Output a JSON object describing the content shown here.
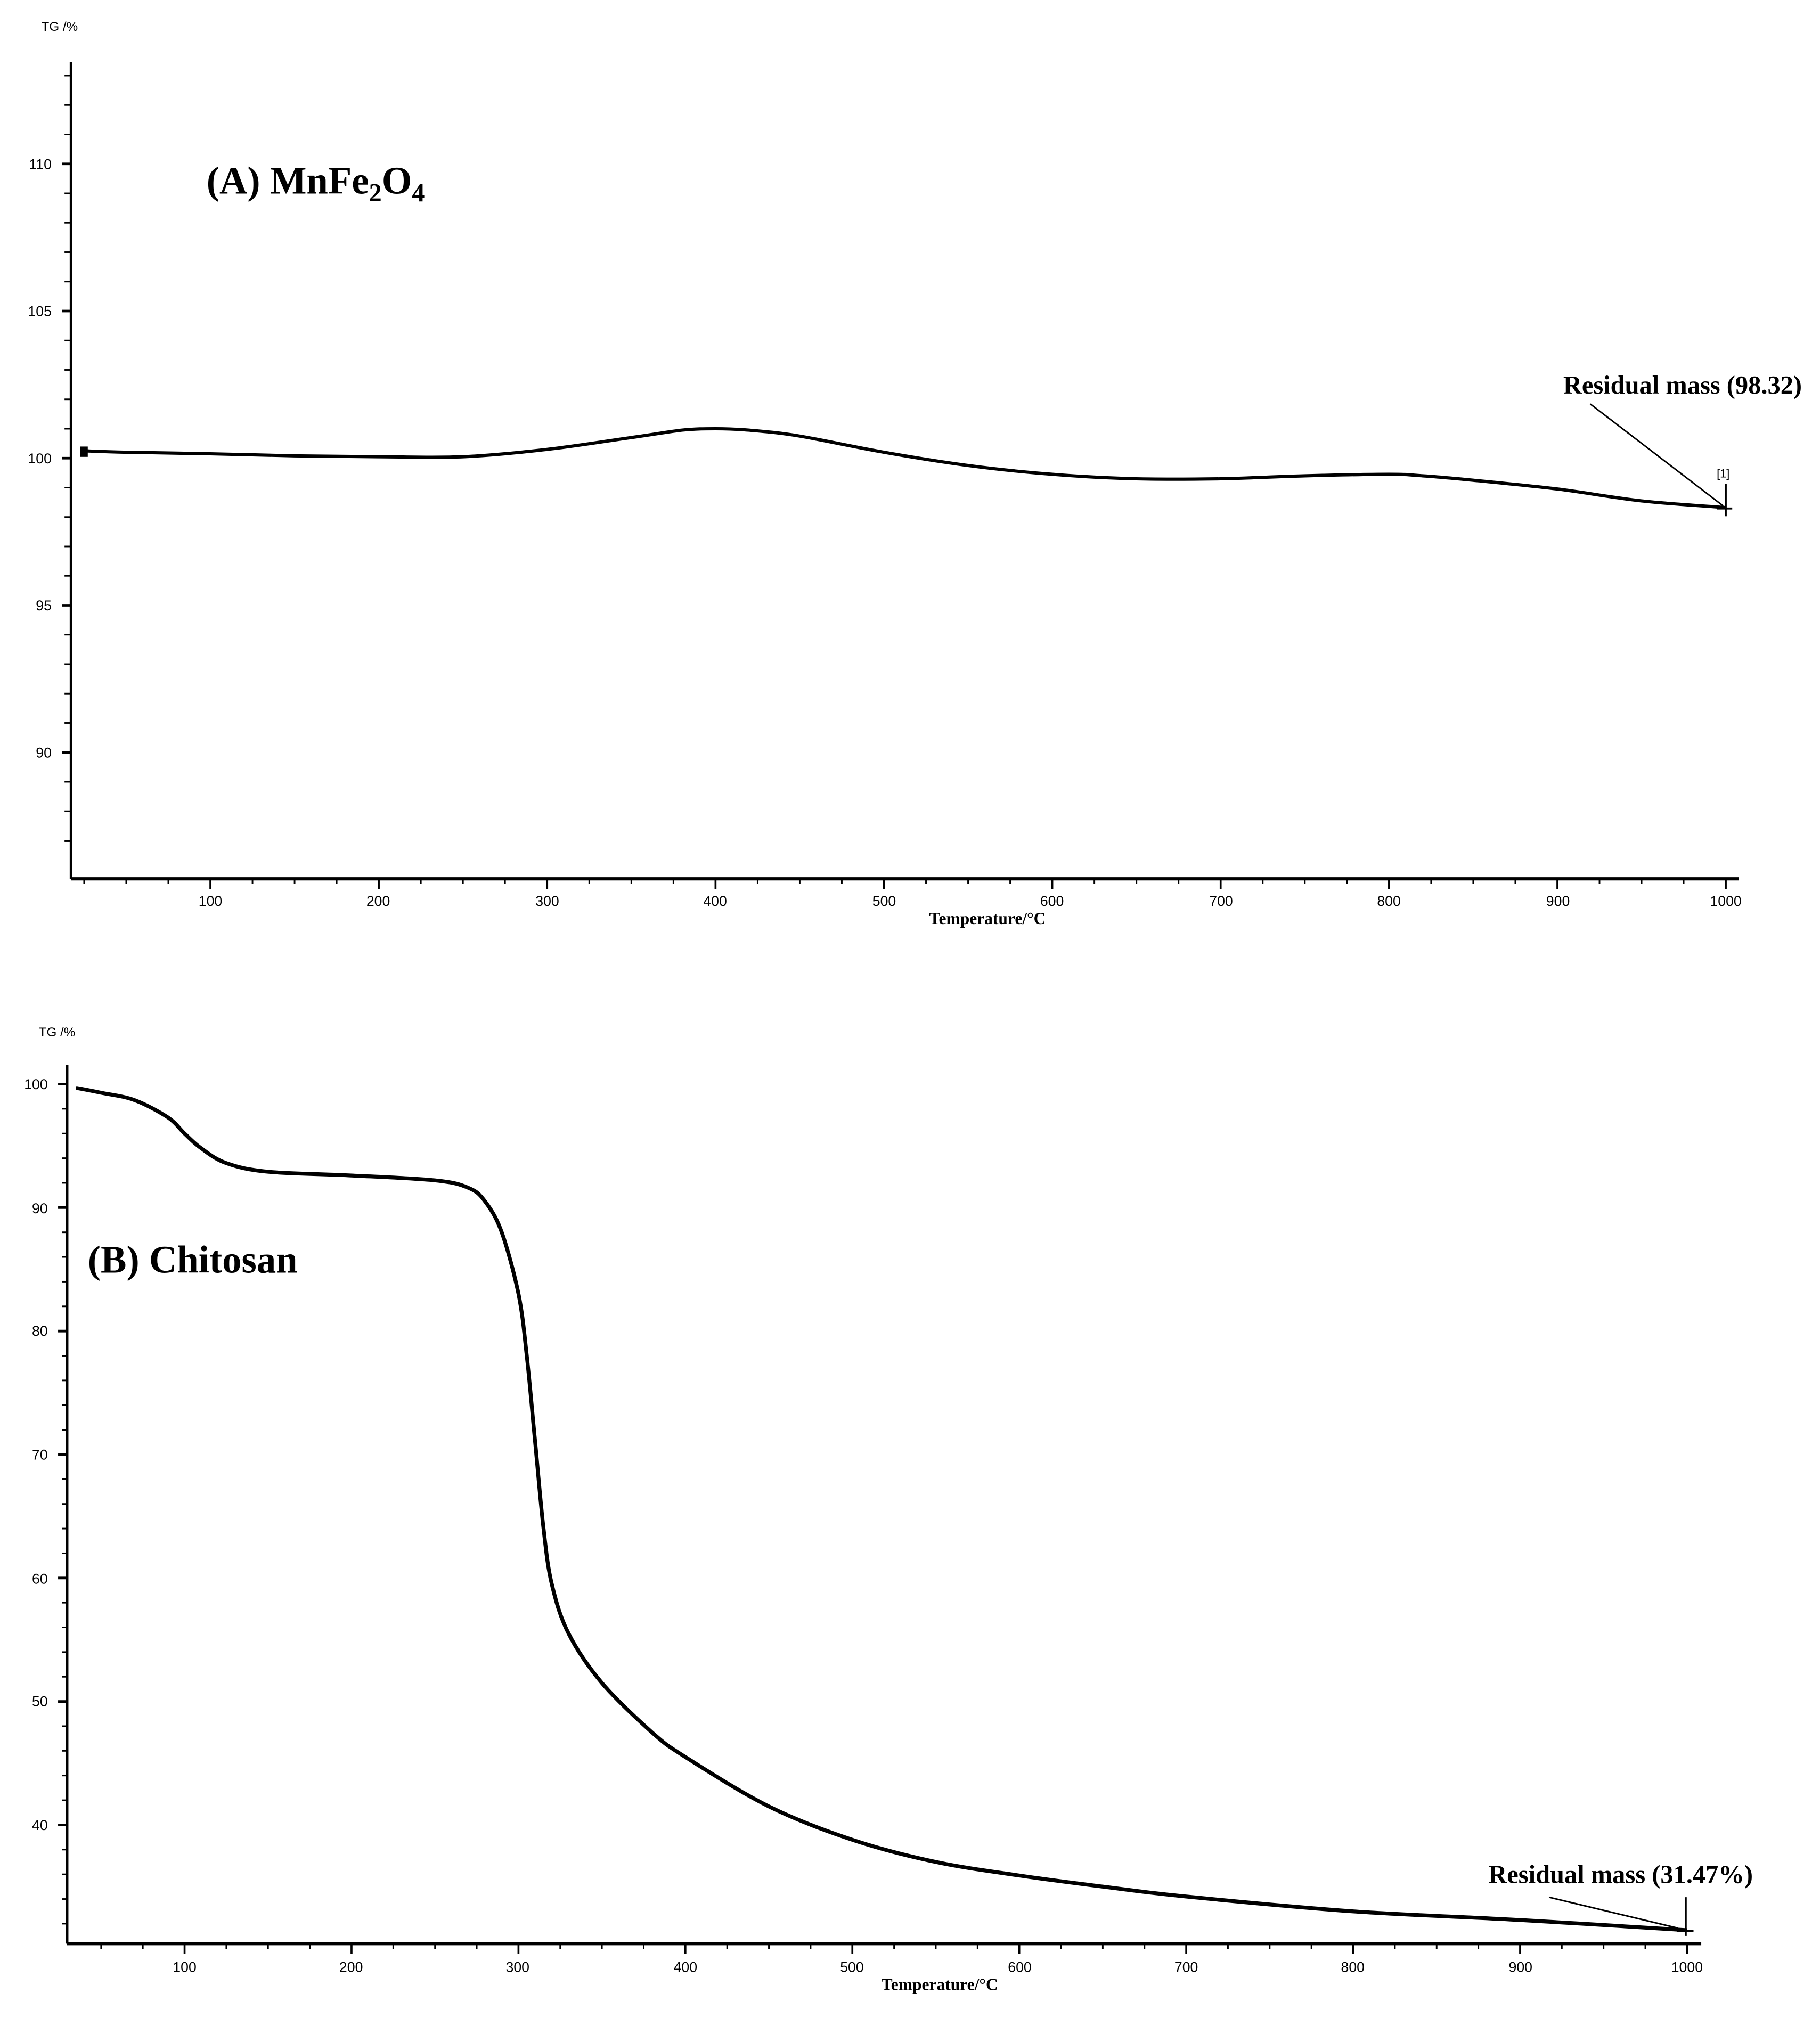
{
  "chart_data": [
    {
      "type": "line",
      "panel": "A",
      "title": "(A) MnFe2O4",
      "title_parts": {
        "prefix": "(A) MnFe",
        "sub1": "2",
        "mid": "O",
        "sub2": "4"
      },
      "xlabel": "Temperature/°C",
      "ylabel": "TG /%",
      "xlim": [
        17,
        1005
      ],
      "ylim": [
        86,
        113.5
      ],
      "xticks": [
        100,
        200,
        300,
        400,
        500,
        600,
        700,
        800,
        900,
        1000
      ],
      "yticks": [
        90,
        95,
        100,
        105,
        110
      ],
      "grid": false,
      "series": [
        {
          "name": "MnFe2O4",
          "x": [
            25,
            50,
            100,
            150,
            200,
            250,
            300,
            350,
            380,
            400,
            420,
            450,
            500,
            550,
            600,
            650,
            700,
            750,
            800,
            820,
            850,
            900,
            950,
            1000
          ],
          "y": [
            100.25,
            100.2,
            100.15,
            100.08,
            100.05,
            100.05,
            100.3,
            100.7,
            100.95,
            101.0,
            100.95,
            100.75,
            100.2,
            99.75,
            99.45,
            99.3,
            99.3,
            99.4,
            99.45,
            99.4,
            99.25,
            98.95,
            98.55,
            98.32
          ]
        }
      ],
      "annotations": [
        {
          "text": "Residual mass (98.32)",
          "x": 1000,
          "y": 98.32
        },
        {
          "text": "[1]",
          "x": 1000,
          "y": 98.32
        }
      ]
    },
    {
      "type": "line",
      "panel": "B",
      "title": "(B) Chitosan",
      "xlabel": "Temperature/°C",
      "ylabel": "TG /%",
      "xlim": [
        30,
        1008
      ],
      "ylim": [
        30.5,
        101
      ],
      "xticks": [
        100,
        200,
        300,
        400,
        500,
        600,
        700,
        800,
        900,
        1000
      ],
      "yticks": [
        40,
        50,
        60,
        70,
        80,
        90,
        100
      ],
      "grid": false,
      "series": [
        {
          "name": "Chitosan",
          "x": [
            35,
            50,
            70,
            90,
            100,
            110,
            125,
            150,
            200,
            250,
            270,
            280,
            290,
            300,
            305,
            310,
            315,
            320,
            330,
            350,
            380,
            400,
            450,
            500,
            550,
            600,
            650,
            700,
            800,
            900,
            1000
          ],
          "y": [
            99.7,
            99.3,
            98.7,
            97.3,
            96.0,
            94.8,
            93.6,
            92.9,
            92.6,
            92.2,
            91.6,
            90.5,
            88.0,
            83.0,
            78.0,
            71.0,
            64.0,
            59.5,
            55.5,
            51.5,
            47.5,
            45.5,
            41.5,
            38.8,
            37.0,
            35.9,
            35.0,
            34.2,
            33.0,
            32.3,
            31.47
          ]
        }
      ],
      "annotations": [
        {
          "text": "Residual mass (31.47%)",
          "x": 1000,
          "y": 31.47
        }
      ]
    }
  ],
  "panelA": {
    "ylabel": "TG /%",
    "xlabel": "Temperature/°C",
    "title_prefix": "(A) MnFe",
    "title_sub1": "2",
    "title_mid": "O",
    "title_sub2": "4",
    "annotation": "Residual mass (98.32)",
    "marker": "[1]",
    "yticks": [
      "110",
      "105",
      "100",
      "95",
      "90"
    ],
    "xticks": [
      "100",
      "200",
      "300",
      "400",
      "500",
      "600",
      "700",
      "800",
      "900",
      "1000"
    ]
  },
  "panelB": {
    "ylabel": "TG /%",
    "xlabel": "Temperature/°C",
    "title": "(B) Chitosan",
    "annotation": "Residual mass (31.47%)",
    "yticks": [
      "100",
      "90",
      "80",
      "70",
      "60",
      "50",
      "40"
    ],
    "xticks": [
      "100",
      "200",
      "300",
      "400",
      "500",
      "600",
      "700",
      "800",
      "900",
      "1000"
    ]
  }
}
